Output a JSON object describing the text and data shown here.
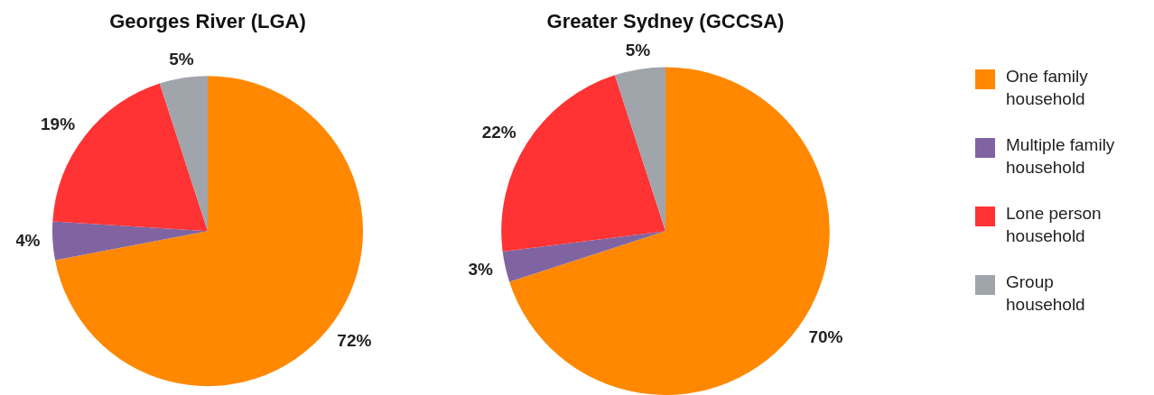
{
  "chart_data": [
    {
      "type": "pie",
      "title": "Georges River (LGA)",
      "categories": [
        null,
        null,
        null,
        null
      ],
      "values": [
        72,
        4,
        19,
        5
      ],
      "colors": [
        "#ff8800",
        "#8064a2",
        "#ff3333",
        "#a0a4ab"
      ],
      "value_labels": [
        "72%",
        "4%",
        "19%",
        "5%"
      ],
      "legend": false
    },
    {
      "type": "pie",
      "title": "Greater Sydney (GCCSA)",
      "categories": [
        "One family household",
        "Multiple family household",
        "Lone person household",
        "Group household"
      ],
      "values": [
        70,
        3,
        22,
        5
      ],
      "colors": [
        "#ff8800",
        "#8064a2",
        "#ff3333",
        "#a0a4ab"
      ],
      "value_labels": [
        "70%",
        "3%",
        "22%",
        "5%"
      ],
      "legend": "right"
    }
  ]
}
